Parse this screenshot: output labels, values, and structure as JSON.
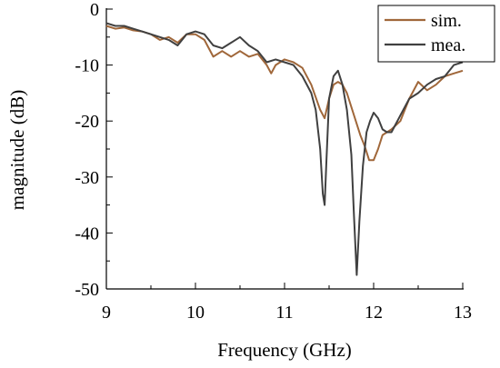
{
  "chart_data": {
    "type": "line",
    "title": "",
    "xlabel": "Frequency (GHz)",
    "ylabel": "magnitude (dB)",
    "xlim": [
      9,
      13
    ],
    "ylim": [
      -50,
      0
    ],
    "xticks": [
      "9",
      "10",
      "11",
      "12",
      "13"
    ],
    "yticks": [
      "0",
      "-10",
      "-20",
      "-30",
      "-40",
      "-50"
    ],
    "grid": false,
    "legend_position": "top-right",
    "series": [
      {
        "name": "sim.",
        "color": "#a0673a",
        "x": [
          9.0,
          9.1,
          9.2,
          9.3,
          9.4,
          9.5,
          9.6,
          9.7,
          9.8,
          9.9,
          10.0,
          10.1,
          10.2,
          10.3,
          10.4,
          10.5,
          10.6,
          10.7,
          10.8,
          10.85,
          10.9,
          11.0,
          11.1,
          11.2,
          11.3,
          11.4,
          11.45,
          11.5,
          11.55,
          11.6,
          11.65,
          11.7,
          11.75,
          11.8,
          11.85,
          11.9,
          11.95,
          12.0,
          12.05,
          12.1,
          12.2,
          12.3,
          12.4,
          12.5,
          12.6,
          12.7,
          12.8,
          12.9,
          13.0
        ],
        "y": [
          -3,
          -3.5,
          -3.3,
          -3.8,
          -4,
          -4.5,
          -5.5,
          -5,
          -6,
          -4.5,
          -4.5,
          -5.5,
          -8.5,
          -7.5,
          -8.5,
          -7.5,
          -8.5,
          -8,
          -10,
          -11.5,
          -10,
          -9,
          -9.5,
          -10.5,
          -13.5,
          -18,
          -19.5,
          -16,
          -13.5,
          -13,
          -13.5,
          -15,
          -17.5,
          -20,
          -22.5,
          -24.5,
          -27,
          -27,
          -25,
          -22.5,
          -21.5,
          -20,
          -16,
          -13,
          -14.5,
          -13.5,
          -12,
          -11.5,
          -11
        ]
      },
      {
        "name": "mea.",
        "color": "#404040",
        "x": [
          9.0,
          9.1,
          9.2,
          9.3,
          9.4,
          9.5,
          9.6,
          9.7,
          9.8,
          9.9,
          10.0,
          10.1,
          10.2,
          10.3,
          10.4,
          10.5,
          10.6,
          10.7,
          10.8,
          10.9,
          11.0,
          11.1,
          11.2,
          11.3,
          11.35,
          11.4,
          11.43,
          11.45,
          11.47,
          11.5,
          11.55,
          11.6,
          11.65,
          11.7,
          11.75,
          11.78,
          11.81,
          11.84,
          11.88,
          11.92,
          11.96,
          12.0,
          12.05,
          12.1,
          12.15,
          12.2,
          12.3,
          12.4,
          12.5,
          12.6,
          12.7,
          12.8,
          12.9,
          13.0
        ],
        "y": [
          -2.5,
          -3,
          -3,
          -3.5,
          -4,
          -4.5,
          -5,
          -5.5,
          -6.5,
          -4.5,
          -4,
          -4.5,
          -6.5,
          -7,
          -6,
          -5,
          -6.5,
          -7.5,
          -9.5,
          -9,
          -9.5,
          -10,
          -12,
          -15,
          -18,
          -25,
          -33,
          -35,
          -27,
          -16,
          -12,
          -11,
          -13.5,
          -18,
          -26,
          -37,
          -47.5,
          -38,
          -28,
          -22,
          -20,
          -18.5,
          -19.5,
          -21.5,
          -22,
          -22,
          -19,
          -16,
          -15,
          -13.5,
          -12.5,
          -12,
          -10,
          -9.5
        ]
      }
    ]
  }
}
